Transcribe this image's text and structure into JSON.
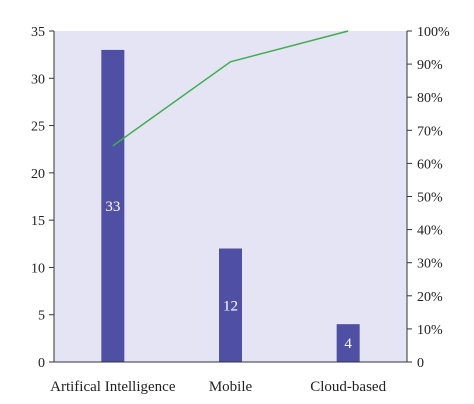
{
  "chart_data": {
    "type": "bar",
    "categories": [
      "Artifical Intelligence",
      "Mobile",
      "Cloud-based"
    ],
    "series": [
      {
        "values": [
          33,
          12,
          4
        ]
      }
    ],
    "line_series": [
      {
        "values": [
          65.3,
          90.7,
          100
        ]
      }
    ],
    "data_labels": [
      "33",
      "12",
      "4"
    ],
    "ylim": [
      0,
      35
    ],
    "y_ticks": [
      0,
      5,
      10,
      15,
      20,
      25,
      30,
      35
    ],
    "y2lim": [
      0,
      100
    ],
    "y2_ticks": [
      "0",
      "10%",
      "20%",
      "30%",
      "40%",
      "50%",
      "60%",
      "70%",
      "80%",
      "90%",
      "100%"
    ],
    "grid": false,
    "legend": "none",
    "colors": {
      "plot_background": "#e4e4f4",
      "bar": "#4f4fa3",
      "line": "#3fae4f",
      "axis": "#333333"
    }
  }
}
